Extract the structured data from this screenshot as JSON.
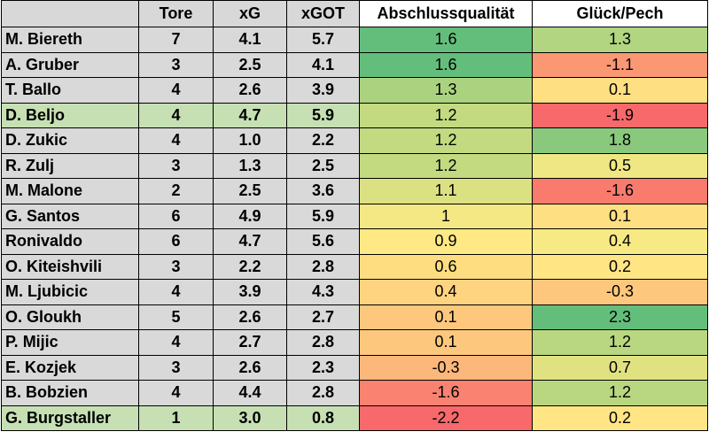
{
  "chart_data": {
    "type": "table",
    "columns": [
      "",
      "Tore",
      "xG",
      "xGOT",
      "Abschlussqualität",
      "Glück/Pech"
    ],
    "rows": [
      {
        "name": "M. Biereth",
        "tore": "7",
        "xg": "4.1",
        "xgot": "5.7",
        "abschluss": "1.6",
        "glueck": "1.3",
        "highlight": false
      },
      {
        "name": "A. Gruber",
        "tore": "3",
        "xg": "2.5",
        "xgot": "4.1",
        "abschluss": "1.6",
        "glueck": "-1.1",
        "highlight": false
      },
      {
        "name": "T. Ballo",
        "tore": "4",
        "xg": "2.6",
        "xgot": "3.9",
        "abschluss": "1.3",
        "glueck": "0.1",
        "highlight": false
      },
      {
        "name": "D. Beljo",
        "tore": "4",
        "xg": "4.7",
        "xgot": "5.9",
        "abschluss": "1.2",
        "glueck": "-1.9",
        "highlight": true
      },
      {
        "name": "D. Zukic",
        "tore": "4",
        "xg": "1.0",
        "xgot": "2.2",
        "abschluss": "1.2",
        "glueck": "1.8",
        "highlight": false
      },
      {
        "name": "R. Zulj",
        "tore": "3",
        "xg": "1.3",
        "xgot": "2.5",
        "abschluss": "1.2",
        "glueck": "0.5",
        "highlight": false
      },
      {
        "name": "M. Malone",
        "tore": "2",
        "xg": "2.5",
        "xgot": "3.6",
        "abschluss": "1.1",
        "glueck": "-1.6",
        "highlight": false
      },
      {
        "name": "G. Santos",
        "tore": "6",
        "xg": "4.9",
        "xgot": "5.9",
        "abschluss": "1",
        "glueck": "0.1",
        "highlight": false
      },
      {
        "name": "Ronivaldo",
        "tore": "6",
        "xg": "4.7",
        "xgot": "5.6",
        "abschluss": "0.9",
        "glueck": "0.4",
        "highlight": false
      },
      {
        "name": "O. Kiteishvili",
        "tore": "3",
        "xg": "2.2",
        "xgot": "2.8",
        "abschluss": "0.6",
        "glueck": "0.2",
        "highlight": false
      },
      {
        "name": "M. Ljubicic",
        "tore": "4",
        "xg": "3.9",
        "xgot": "4.3",
        "abschluss": "0.4",
        "glueck": "-0.3",
        "highlight": false
      },
      {
        "name": "O. Gloukh",
        "tore": "5",
        "xg": "2.6",
        "xgot": "2.7",
        "abschluss": "0.1",
        "glueck": "2.3",
        "highlight": false
      },
      {
        "name": "P. Mijic",
        "tore": "4",
        "xg": "2.7",
        "xgot": "2.8",
        "abschluss": "0.1",
        "glueck": "1.2",
        "highlight": false
      },
      {
        "name": "E. Kozjek",
        "tore": "3",
        "xg": "2.6",
        "xgot": "2.3",
        "abschluss": "-0.3",
        "glueck": "0.7",
        "highlight": false
      },
      {
        "name": "B. Bobzien",
        "tore": "4",
        "xg": "4.4",
        "xgot": "2.8",
        "abschluss": "-1.6",
        "glueck": "1.2",
        "highlight": false
      },
      {
        "name": "G. Burgstaller",
        "tore": "1",
        "xg": "3.0",
        "xgot": "0.8",
        "abschluss": "-2.2",
        "glueck": "0.2",
        "highlight": true
      }
    ],
    "color_scale": {
      "low": "#f8696b",
      "mid": "#ffeb84",
      "high": "#63be7b"
    },
    "highlight_color": "#c6e0b4"
  }
}
